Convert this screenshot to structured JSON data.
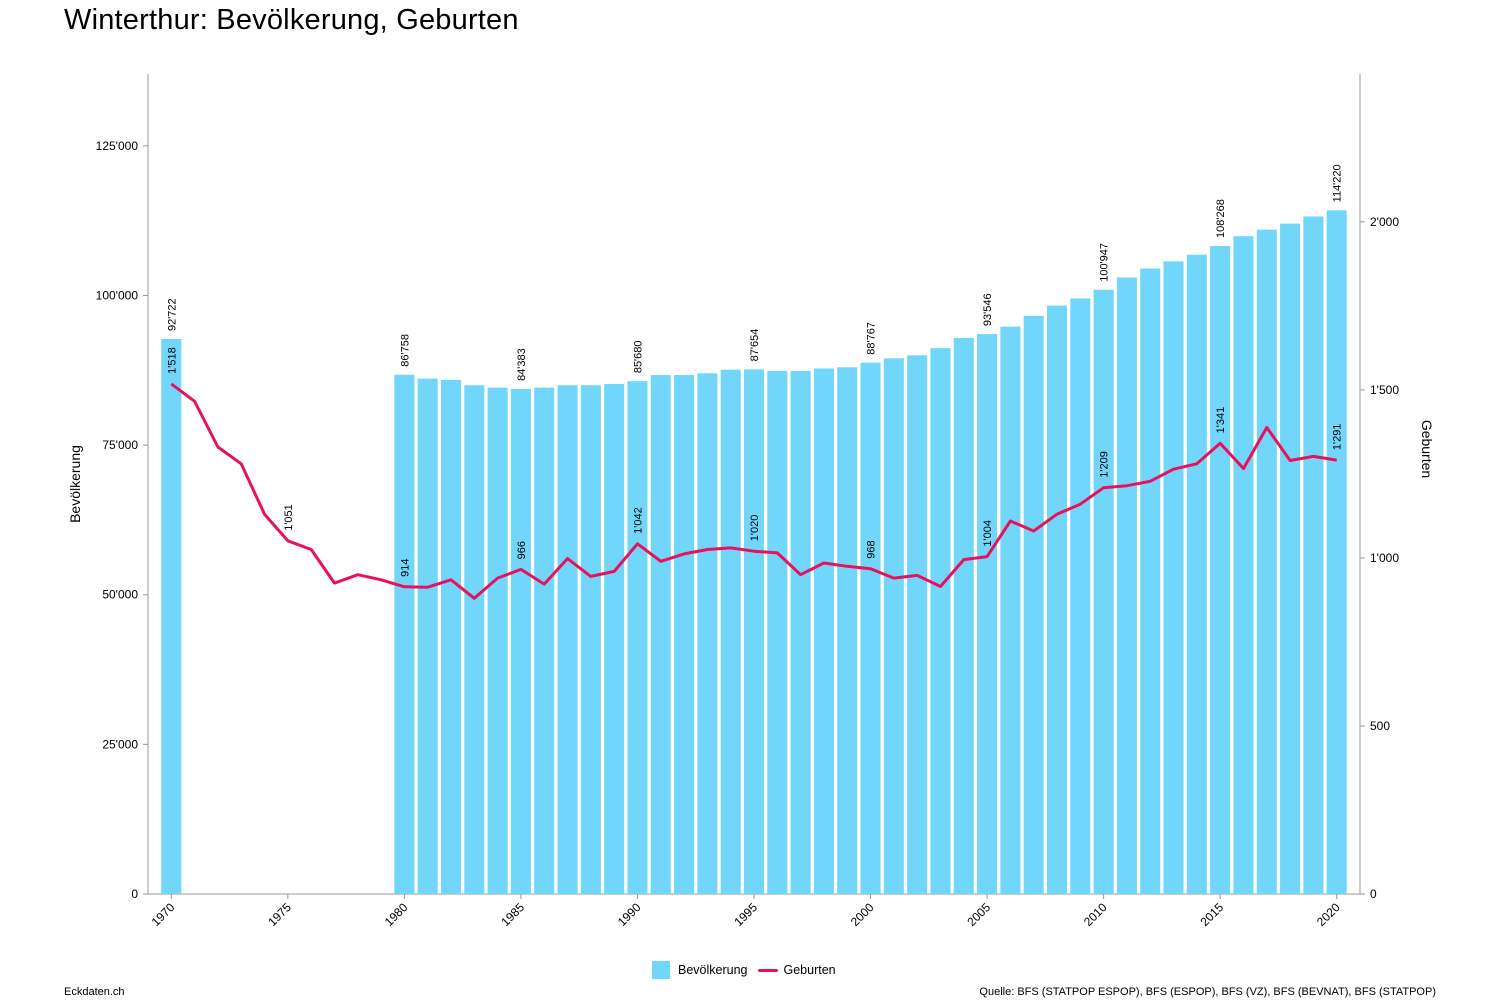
{
  "title": "Winterthur: Bevölkerung, Geburten",
  "footer": {
    "left": "Eckdaten.ch",
    "right": "Quelle: BFS (STATPOP ESPOP), BFS (ESPOP), BFS (VZ), BFS (BEVNAT), BFS (STATPOP)"
  },
  "legend": {
    "population": "Bevölkerung",
    "births": "Geburten"
  },
  "colors": {
    "bar": "#72d6fb",
    "line": "#e8125c",
    "axis": "#999999"
  },
  "chart_data": {
    "type": "bar+line",
    "title": "Winterthur: Bevölkerung, Geburten",
    "ylabel": "Bevölkerung",
    "y2label": "Geburten",
    "ylim": [
      0,
      137000
    ],
    "y2lim": [
      0,
      2440
    ],
    "yticks": [
      0,
      25000,
      50000,
      75000,
      100000,
      125000
    ],
    "ytick_labels": [
      "0",
      "25'000",
      "50'000",
      "75'000",
      "100'000",
      "125'000"
    ],
    "y2ticks": [
      0,
      500,
      1000,
      1500,
      2000
    ],
    "y2tick_labels": [
      "0",
      "500",
      "1'000",
      "1'500",
      "2'000"
    ],
    "xlim": [
      1969,
      2021
    ],
    "xticks": [
      1970,
      1975,
      1980,
      1985,
      1990,
      1995,
      2000,
      2005,
      2010,
      2015,
      2020
    ],
    "legend_position": "bottom",
    "grid": false,
    "series": [
      {
        "name": "Bevölkerung",
        "type": "bar",
        "axis": "left",
        "x": [
          1970,
          1980,
          1981,
          1982,
          1983,
          1984,
          1985,
          1986,
          1987,
          1988,
          1989,
          1990,
          1991,
          1992,
          1993,
          1994,
          1995,
          1996,
          1997,
          1998,
          1999,
          2000,
          2001,
          2002,
          2003,
          2004,
          2005,
          2006,
          2007,
          2008,
          2009,
          2010,
          2011,
          2012,
          2013,
          2014,
          2015,
          2016,
          2017,
          2018,
          2019,
          2020
        ],
        "values": [
          92722,
          86758,
          86100,
          85900,
          85000,
          84600,
          84383,
          84600,
          85000,
          85000,
          85200,
          85680,
          86700,
          86700,
          87000,
          87600,
          87654,
          87400,
          87400,
          87800,
          88000,
          88767,
          89500,
          90000,
          91200,
          92900,
          93546,
          94800,
          96600,
          98300,
          99500,
          100947,
          103000,
          104500,
          105700,
          106800,
          108268,
          109900,
          111000,
          112000,
          113200,
          114220
        ]
      },
      {
        "name": "Geburten",
        "type": "line",
        "axis": "right",
        "x": [
          1970,
          1971,
          1972,
          1973,
          1974,
          1975,
          1976,
          1977,
          1978,
          1979,
          1980,
          1981,
          1982,
          1983,
          1984,
          1985,
          1986,
          1987,
          1988,
          1989,
          1990,
          1991,
          1992,
          1993,
          1994,
          1995,
          1996,
          1997,
          1998,
          1999,
          2000,
          2001,
          2002,
          2003,
          2004,
          2005,
          2006,
          2007,
          2008,
          2009,
          2010,
          2011,
          2012,
          2013,
          2014,
          2015,
          2016,
          2017,
          2018,
          2019,
          2020
        ],
        "values": [
          1518,
          1466,
          1330,
          1280,
          1130,
          1051,
          1025,
          925,
          950,
          935,
          914,
          913,
          935,
          880,
          940,
          966,
          922,
          998,
          945,
          960,
          1042,
          990,
          1012,
          1025,
          1030,
          1020,
          1015,
          950,
          985,
          975,
          968,
          940,
          948,
          915,
          995,
          1004,
          1110,
          1080,
          1130,
          1160,
          1209,
          1215,
          1228,
          1264,
          1280,
          1341,
          1266,
          1388,
          1290,
          1302,
          1291
        ]
      }
    ],
    "bar_labels": [
      {
        "x": 1970,
        "text": "92'722"
      },
      {
        "x": 1980,
        "text": "86'758"
      },
      {
        "x": 1985,
        "text": "84'383"
      },
      {
        "x": 1990,
        "text": "85'680"
      },
      {
        "x": 1995,
        "text": "87'654"
      },
      {
        "x": 2000,
        "text": "88'767"
      },
      {
        "x": 2005,
        "text": "93'546"
      },
      {
        "x": 2010,
        "text": "100'947"
      },
      {
        "x": 2015,
        "text": "108'268"
      },
      {
        "x": 2020,
        "text": "114'220"
      }
    ],
    "line_labels": [
      {
        "x": 1970,
        "text": "1'518"
      },
      {
        "x": 1975,
        "text": "1'051"
      },
      {
        "x": 1980,
        "text": "914"
      },
      {
        "x": 1985,
        "text": "966"
      },
      {
        "x": 1990,
        "text": "1'042"
      },
      {
        "x": 1995,
        "text": "1'020"
      },
      {
        "x": 2000,
        "text": "968"
      },
      {
        "x": 2005,
        "text": "1'004"
      },
      {
        "x": 2010,
        "text": "1'209"
      },
      {
        "x": 2015,
        "text": "1'341"
      },
      {
        "x": 2020,
        "text": "1'291"
      }
    ]
  }
}
